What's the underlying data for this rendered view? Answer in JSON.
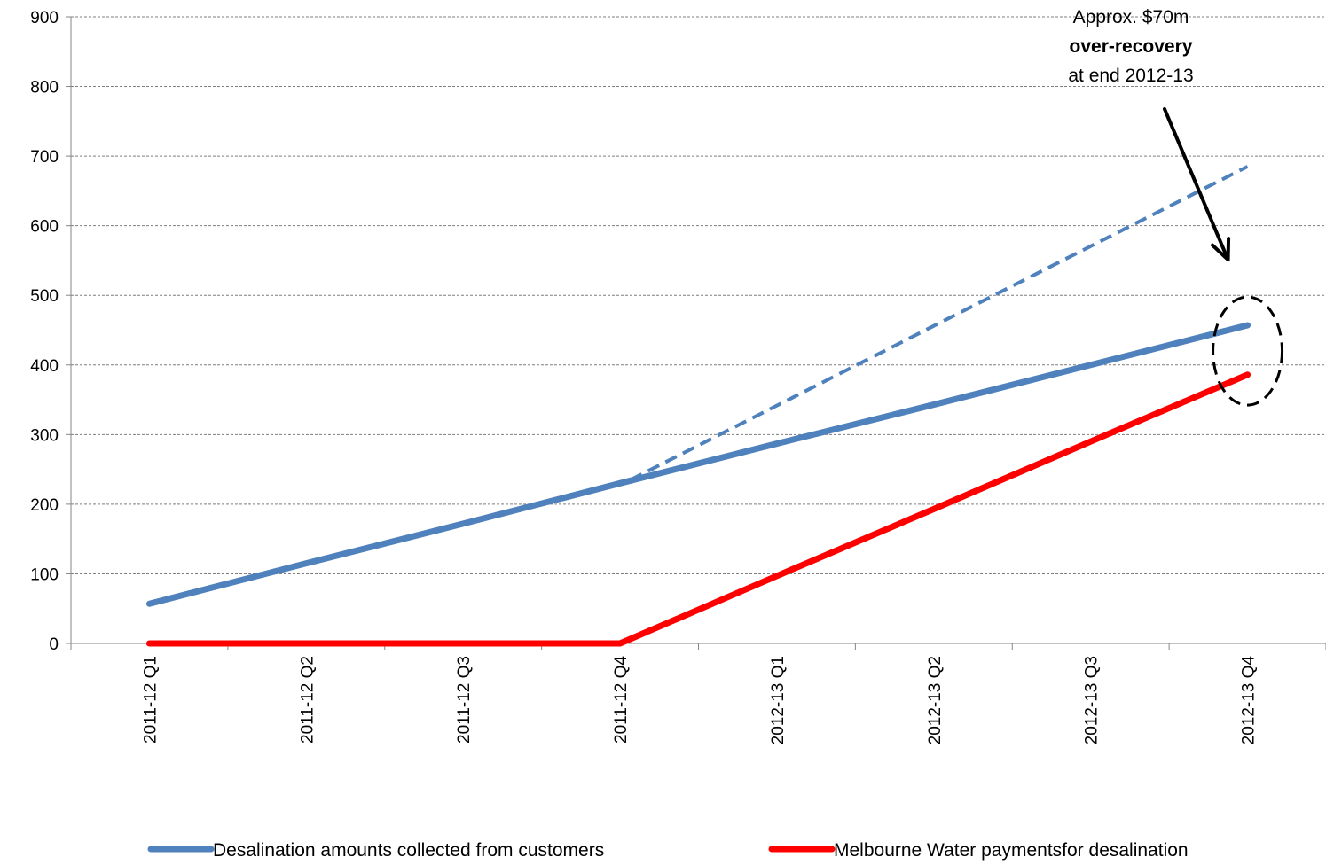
{
  "chart_data": {
    "type": "line",
    "title": "",
    "xlabel": "",
    "ylabel": "",
    "categories": [
      "2011-12 Q1",
      "2011-12 Q2",
      "2011-12 Q3",
      "2011-12 Q4",
      "2012-13 Q1",
      "2012-13 Q2",
      "2012-13 Q3",
      "2012-13 Q4"
    ],
    "ylim": [
      0,
      900
    ],
    "yticks": [
      0,
      100,
      200,
      300,
      400,
      500,
      600,
      700,
      800,
      900
    ],
    "grid": true,
    "series": [
      {
        "name": "Desalination amounts collected from customers",
        "color": "#4f81bd",
        "values": [
          57,
          115,
          172,
          230,
          287,
          343,
          400,
          457
        ]
      },
      {
        "name": "Melbourne Water paymentsfor desalination",
        "color": "#ff0000",
        "values": [
          0,
          0,
          0,
          0,
          97,
          193,
          290,
          386
        ]
      }
    ],
    "projection": {
      "color": "#4f81bd",
      "style": "dashed",
      "from": {
        "x": "2011-12 Q4",
        "y": 235
      },
      "to": {
        "x": "2012-13 Q4",
        "y": 685
      }
    },
    "annotation": {
      "lines": [
        "Approx. $70m",
        "over-recovery",
        "at end 2012-13"
      ],
      "bold_line": 1,
      "target": {
        "x": "2012-13 Q4",
        "y": 420
      }
    },
    "legend_placement": "bottom"
  }
}
